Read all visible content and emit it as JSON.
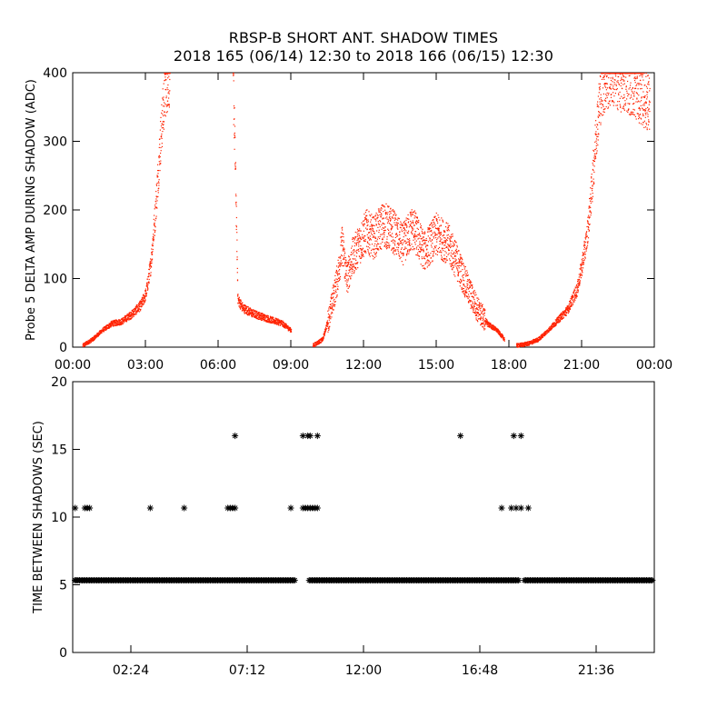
{
  "header": {
    "title": "RBSP-B SHORT ANT. SHADOW TIMES",
    "subtitle": "2018 165 (06/14) 12:30 to 2018 166 (06/15) 12:30"
  },
  "chart_data": [
    {
      "type": "scatter",
      "ylabel": "Probe 5 DELTA AMP DURING SHADOW (ADC)",
      "xlabel": "",
      "x_unit": "hours",
      "xlim": [
        0,
        24
      ],
      "ylim": [
        0,
        400
      ],
      "x_ticks": [
        0,
        3,
        6,
        9,
        12,
        15,
        18,
        21,
        24
      ],
      "x_tick_labels": [
        "00:00",
        "03:00",
        "06:00",
        "09:00",
        "12:00",
        "15:00",
        "18:00",
        "21:00",
        "00:00"
      ],
      "y_ticks": [
        0,
        100,
        200,
        300,
        400
      ],
      "y_tick_labels": [
        "0",
        "100",
        "200",
        "300",
        "400"
      ],
      "marker": "dot",
      "color": "#ff2200",
      "series": [
        {
          "x": [
            0.4,
            0.8,
            1.2,
            1.6,
            2.0,
            2.4,
            2.8,
            3.0,
            3.2,
            3.4,
            3.6,
            3.8,
            4.0,
            6.6,
            6.7,
            6.8,
            7.0,
            7.4,
            7.8,
            8.2,
            8.6,
            9.0,
            9.9,
            10.3,
            10.6,
            10.9,
            11.1,
            11.3,
            11.5,
            11.8,
            12.1,
            12.4,
            12.8,
            13.2,
            13.6,
            14.0,
            14.5,
            15.0,
            15.5,
            15.9,
            16.3,
            16.7,
            17.1,
            17.5,
            17.8,
            18.3,
            18.8,
            19.2,
            19.6,
            20.0,
            20.4,
            20.8,
            21.0,
            21.2,
            21.4,
            21.6,
            21.8,
            22.2,
            22.6,
            23.0,
            23.4,
            23.8
          ],
          "y": [
            3,
            12,
            25,
            35,
            38,
            48,
            62,
            78,
            120,
            200,
            300,
            380,
            400,
            400,
            250,
            70,
            58,
            50,
            45,
            40,
            36,
            25,
            3,
            12,
            50,
            100,
            150,
            100,
            130,
            150,
            170,
            160,
            180,
            170,
            150,
            175,
            140,
            165,
            150,
            120,
            85,
            55,
            35,
            25,
            12,
            3,
            6,
            12,
            25,
            40,
            55,
            85,
            120,
            160,
            230,
            320,
            380,
            400,
            390,
            385,
            370,
            355
          ]
        }
      ]
    },
    {
      "type": "scatter",
      "ylabel": "TIME BETWEEN SHADOWS (SEC)",
      "xlabel": "",
      "x_unit": "hours",
      "xlim": [
        0,
        24
      ],
      "ylim": [
        0,
        20
      ],
      "x_ticks": [
        2.4,
        7.2,
        12.0,
        16.8,
        21.6
      ],
      "x_tick_labels": [
        "02:24",
        "07:12",
        "12:00",
        "16:48",
        "21:36"
      ],
      "y_ticks": [
        0,
        5,
        10,
        15,
        20
      ],
      "y_tick_labels": [
        "0",
        "5",
        "10",
        "15",
        "20"
      ],
      "marker": "asterisk",
      "color": "#000000",
      "baseline": {
        "y": 5.33,
        "x_from": 0.1,
        "x_to": 23.95,
        "gaps": [
          [
            9.2,
            9.75
          ],
          [
            18.4,
            18.6
          ]
        ]
      },
      "series": [
        {
          "x": [
            0.1,
            0.5,
            0.6,
            0.7,
            3.2,
            4.6,
            6.4,
            6.5,
            6.6,
            6.7,
            9.0,
            9.5,
            9.6,
            9.7,
            9.8,
            9.9,
            10.0,
            10.1,
            17.7,
            18.1,
            18.3,
            18.5,
            18.8,
            0.1,
            9.5,
            9.7,
            9.8,
            10.1,
            16.0,
            6.7,
            18.2,
            18.5
          ],
          "y": [
            10.67,
            10.67,
            10.67,
            10.67,
            10.67,
            10.67,
            10.67,
            10.67,
            10.67,
            10.67,
            10.67,
            10.67,
            10.67,
            10.67,
            10.67,
            10.67,
            10.67,
            10.67,
            10.67,
            10.67,
            10.67,
            10.67,
            10.67,
            5.33,
            16.0,
            16.0,
            16.0,
            16.0,
            16.0,
            16.0,
            16.0,
            16.0
          ]
        }
      ]
    }
  ]
}
